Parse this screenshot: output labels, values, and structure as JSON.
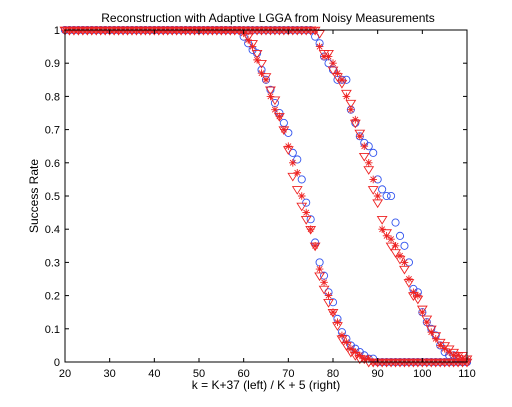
{
  "chart_data": {
    "type": "scatter",
    "title": "Reconstruction with Adaptive LGGA from Noisy Measurements",
    "xlabel": "k = K+37 (left)  /  K + 5 (right)",
    "ylabel": "Success Rate",
    "xlim": [
      20,
      110
    ],
    "ylim": [
      0,
      1
    ],
    "xticks": [
      "20",
      "30",
      "40",
      "50",
      "60",
      "70",
      "80",
      "90",
      "100",
      "110"
    ],
    "yticks": [
      "0",
      "0.1",
      "0.2",
      "0.3",
      "0.4",
      "0.5",
      "0.6",
      "0.7",
      "0.8",
      "0.9",
      "1"
    ],
    "grid": false,
    "legend": "none",
    "colors": {
      "circle": "#3355ee",
      "star": "#ee2222",
      "triangle": "#ee2222"
    },
    "series": [
      {
        "marker": "circle",
        "x": [
          20,
          21,
          22,
          23,
          24,
          25,
          26,
          27,
          28,
          29,
          30,
          31,
          32,
          33,
          34,
          35,
          36,
          37,
          38,
          39,
          40,
          41,
          42,
          43,
          44,
          45,
          46,
          47,
          48,
          49,
          50,
          51,
          52,
          53,
          54,
          55,
          56,
          57,
          58,
          59,
          60,
          61,
          62,
          63,
          64,
          65,
          66,
          67,
          68,
          69,
          70,
          71,
          72,
          73,
          74,
          75,
          76,
          77,
          78,
          79,
          80,
          81,
          82,
          83,
          84,
          85,
          86,
          87,
          88,
          89,
          90,
          91,
          92,
          93,
          94,
          95,
          96,
          97,
          98,
          99,
          100,
          101,
          102,
          103,
          104,
          105,
          106,
          107,
          108,
          109,
          110
        ],
        "y": [
          1,
          1,
          1,
          1,
          1,
          1,
          1,
          1,
          1,
          1,
          1,
          1,
          1,
          1,
          1,
          1,
          1,
          1,
          1,
          1,
          1,
          1,
          1,
          1,
          1,
          1,
          1,
          1,
          1,
          1,
          1,
          1,
          1,
          1,
          1,
          1,
          1,
          1,
          1,
          1,
          0.98,
          0.96,
          0.94,
          0.93,
          0.88,
          0.85,
          0.82,
          0.78,
          0.75,
          0.72,
          0.69,
          0.63,
          0.61,
          0.55,
          0.48,
          0.43,
          0.36,
          0.3,
          0.26,
          0.21,
          0.18,
          0.13,
          0.09,
          0.07,
          0.05,
          0.04,
          0.03,
          0.02,
          0.01,
          0.01,
          0,
          0,
          0,
          0,
          0,
          0,
          0,
          0,
          0,
          0,
          0,
          0,
          0,
          0,
          0,
          0,
          0,
          0,
          0,
          0,
          0
        ]
      },
      {
        "marker": "circle",
        "x": [
          20,
          21,
          22,
          23,
          24,
          25,
          26,
          27,
          28,
          29,
          30,
          31,
          32,
          33,
          34,
          35,
          36,
          37,
          38,
          39,
          40,
          41,
          42,
          43,
          44,
          45,
          46,
          47,
          48,
          49,
          50,
          51,
          52,
          53,
          54,
          55,
          56,
          57,
          58,
          59,
          60,
          61,
          62,
          63,
          64,
          65,
          66,
          67,
          68,
          69,
          70,
          71,
          72,
          73,
          74,
          75,
          76,
          77,
          78,
          79,
          80,
          81,
          82,
          83,
          84,
          85,
          86,
          87,
          88,
          89,
          90,
          91,
          92,
          93,
          94,
          95,
          96,
          97,
          98,
          99,
          100,
          101,
          102,
          103,
          104,
          105,
          106,
          107,
          108,
          109,
          110
        ],
        "y": [
          1,
          1,
          1,
          1,
          1,
          1,
          1,
          1,
          1,
          1,
          1,
          1,
          1,
          1,
          1,
          1,
          1,
          1,
          1,
          1,
          1,
          1,
          1,
          1,
          1,
          1,
          1,
          1,
          1,
          1,
          1,
          1,
          1,
          1,
          1,
          1,
          1,
          1,
          1,
          1,
          1,
          1,
          1,
          1,
          1,
          1,
          1,
          1,
          1,
          1,
          1,
          1,
          1,
          1,
          1,
          1,
          0.98,
          0.96,
          0.92,
          0.9,
          0.88,
          0.85,
          0.85,
          0.85,
          0.76,
          0.72,
          0.68,
          0.66,
          0.65,
          0.63,
          0.55,
          0.52,
          0.5,
          0.5,
          0.42,
          0.38,
          0.35,
          0.3,
          0.22,
          0.21,
          0.15,
          0.12,
          0.1,
          0.08,
          0.05,
          0.03,
          0.02,
          0.02,
          0.01,
          0,
          0
        ]
      },
      {
        "marker": "star",
        "x": [
          20,
          21,
          22,
          23,
          24,
          25,
          26,
          27,
          28,
          29,
          30,
          31,
          32,
          33,
          34,
          35,
          36,
          37,
          38,
          39,
          40,
          41,
          42,
          43,
          44,
          45,
          46,
          47,
          48,
          49,
          50,
          51,
          52,
          53,
          54,
          55,
          56,
          57,
          58,
          59,
          60,
          61,
          62,
          63,
          64,
          65,
          66,
          67,
          68,
          69,
          70,
          71,
          72,
          73,
          74,
          75,
          76,
          77,
          78,
          79,
          80,
          81,
          82,
          83,
          84,
          85,
          86,
          87,
          88,
          89,
          90,
          91,
          92,
          93,
          94,
          95,
          96,
          97,
          98,
          99,
          100,
          101,
          102,
          103,
          104,
          105,
          106,
          107,
          108,
          109,
          110
        ],
        "y": [
          1,
          1,
          1,
          1,
          1,
          1,
          1,
          1,
          1,
          1,
          1,
          1,
          1,
          1,
          1,
          1,
          1,
          1,
          1,
          1,
          1,
          1,
          1,
          1,
          1,
          1,
          1,
          1,
          1,
          1,
          1,
          1,
          1,
          1,
          1,
          1,
          1,
          1,
          1,
          1,
          0.99,
          0.97,
          0.95,
          0.91,
          0.87,
          0.85,
          0.8,
          0.76,
          0.74,
          0.7,
          0.65,
          0.6,
          0.57,
          0.5,
          0.45,
          0.4,
          0.35,
          0.28,
          0.24,
          0.2,
          0.15,
          0.12,
          0.08,
          0.06,
          0.04,
          0.03,
          0.02,
          0.01,
          0.01,
          0,
          0,
          0,
          0,
          0,
          0,
          0,
          0,
          0,
          0,
          0,
          0,
          0,
          0,
          0,
          0,
          0,
          0,
          0,
          0,
          0,
          0
        ]
      },
      {
        "marker": "star",
        "x": [
          20,
          21,
          22,
          23,
          24,
          25,
          26,
          27,
          28,
          29,
          30,
          31,
          32,
          33,
          34,
          35,
          36,
          37,
          38,
          39,
          40,
          41,
          42,
          43,
          44,
          45,
          46,
          47,
          48,
          49,
          50,
          51,
          52,
          53,
          54,
          55,
          56,
          57,
          58,
          59,
          60,
          61,
          62,
          63,
          64,
          65,
          66,
          67,
          68,
          69,
          70,
          71,
          72,
          73,
          74,
          75,
          76,
          77,
          78,
          79,
          80,
          81,
          82,
          83,
          84,
          85,
          86,
          87,
          88,
          89,
          90,
          91,
          92,
          93,
          94,
          95,
          96,
          97,
          98,
          99,
          100,
          101,
          102,
          103,
          104,
          105,
          106,
          107,
          108,
          109,
          110
        ],
        "y": [
          1,
          1,
          1,
          1,
          1,
          1,
          1,
          1,
          1,
          1,
          1,
          1,
          1,
          1,
          1,
          1,
          1,
          1,
          1,
          1,
          1,
          1,
          1,
          1,
          1,
          1,
          1,
          1,
          1,
          1,
          1,
          1,
          1,
          1,
          1,
          1,
          1,
          1,
          1,
          1,
          1,
          1,
          1,
          1,
          1,
          1,
          1,
          1,
          1,
          1,
          1,
          1,
          1,
          1,
          1,
          1,
          1,
          0.95,
          0.92,
          0.92,
          0.9,
          0.87,
          0.85,
          0.8,
          0.76,
          0.73,
          0.68,
          0.65,
          0.6,
          0.55,
          0.5,
          0.4,
          0.38,
          0.37,
          0.35,
          0.32,
          0.3,
          0.25,
          0.21,
          0.2,
          0.15,
          0.12,
          0.09,
          0.07,
          0.05,
          0.04,
          0.03,
          0.02,
          0.02,
          0.01,
          0.01
        ]
      },
      {
        "marker": "triangle",
        "x": [
          20,
          21,
          22,
          23,
          24,
          25,
          26,
          27,
          28,
          29,
          30,
          31,
          32,
          33,
          34,
          35,
          36,
          37,
          38,
          39,
          40,
          41,
          42,
          43,
          44,
          45,
          46,
          47,
          48,
          49,
          50,
          51,
          52,
          53,
          54,
          55,
          56,
          57,
          58,
          59,
          60,
          61,
          62,
          63,
          64,
          65,
          66,
          67,
          68,
          69,
          70,
          71,
          72,
          73,
          74,
          75,
          76,
          77,
          78,
          79,
          80,
          81,
          82,
          83,
          84,
          85,
          86,
          87,
          88,
          89,
          90,
          91,
          92,
          93,
          94,
          95,
          96,
          97,
          98,
          99,
          100,
          101,
          102,
          103,
          104,
          105,
          106,
          107,
          108,
          109,
          110
        ],
        "y": [
          1,
          1,
          1,
          1,
          1,
          1,
          1,
          1,
          1,
          1,
          1,
          1,
          1,
          1,
          1,
          1,
          1,
          1,
          1,
          1,
          1,
          1,
          1,
          1,
          1,
          1,
          1,
          1,
          1,
          1,
          1,
          1,
          1,
          1,
          1,
          1,
          1,
          1,
          1,
          1,
          1,
          0.98,
          0.96,
          0.93,
          0.9,
          0.86,
          0.82,
          0.79,
          0.74,
          0.7,
          0.64,
          0.56,
          0.52,
          0.47,
          0.43,
          0.4,
          0.35,
          0.26,
          0.22,
          0.18,
          0.15,
          0.11,
          0.07,
          0.05,
          0.03,
          0.02,
          0.01,
          0.01,
          0,
          0,
          0,
          0,
          0,
          0,
          0,
          0,
          0,
          0,
          0,
          0,
          0,
          0,
          0,
          0,
          0,
          0,
          0,
          0,
          0,
          0,
          0
        ]
      },
      {
        "marker": "triangle",
        "x": [
          20,
          21,
          22,
          23,
          24,
          25,
          26,
          27,
          28,
          29,
          30,
          31,
          32,
          33,
          34,
          35,
          36,
          37,
          38,
          39,
          40,
          41,
          42,
          43,
          44,
          45,
          46,
          47,
          48,
          49,
          50,
          51,
          52,
          53,
          54,
          55,
          56,
          57,
          58,
          59,
          60,
          61,
          62,
          63,
          64,
          65,
          66,
          67,
          68,
          69,
          70,
          71,
          72,
          73,
          74,
          75,
          76,
          77,
          78,
          79,
          80,
          81,
          82,
          83,
          84,
          85,
          86,
          87,
          88,
          89,
          90,
          91,
          92,
          93,
          94,
          95,
          96,
          97,
          98,
          99,
          100,
          101,
          102,
          103,
          104,
          105,
          106,
          107,
          108,
          109,
          110
        ],
        "y": [
          1,
          1,
          1,
          1,
          1,
          1,
          1,
          1,
          1,
          1,
          1,
          1,
          1,
          1,
          1,
          1,
          1,
          1,
          1,
          1,
          1,
          1,
          1,
          1,
          1,
          1,
          1,
          1,
          1,
          1,
          1,
          1,
          1,
          1,
          1,
          1,
          1,
          1,
          1,
          1,
          1,
          1,
          1,
          1,
          1,
          1,
          1,
          1,
          1,
          1,
          1,
          1,
          1,
          1,
          1,
          1,
          1,
          0.99,
          0.93,
          0.93,
          0.88,
          0.86,
          0.84,
          0.81,
          0.78,
          0.72,
          0.69,
          0.62,
          0.58,
          0.52,
          0.48,
          0.43,
          0.39,
          0.35,
          0.33,
          0.31,
          0.28,
          0.24,
          0.2,
          0.19,
          0.16,
          0.13,
          0.1,
          0.08,
          0.06,
          0.05,
          0.04,
          0.03,
          0.02,
          0.02,
          0.01
        ]
      }
    ]
  }
}
